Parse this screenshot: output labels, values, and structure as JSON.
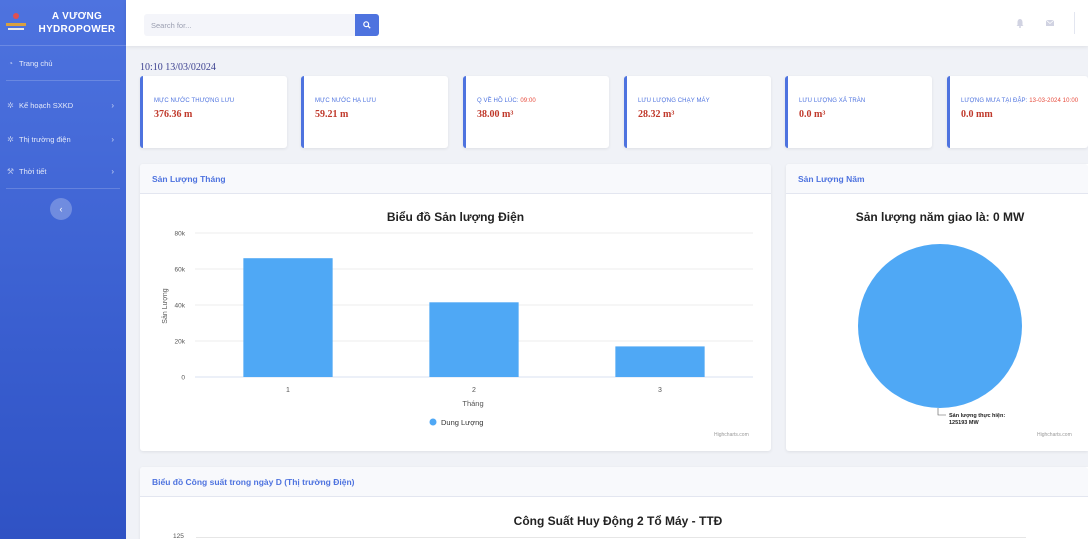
{
  "brand": {
    "line1": "A VƯƠNG",
    "line2": "HYDROPOWER"
  },
  "sidebar": {
    "items": [
      {
        "label": "Trang chủ",
        "icon": "dashboard-icon"
      },
      {
        "label": "Kế hoạch SXKD",
        "icon": "gear-icon"
      },
      {
        "label": "Thị trường điện",
        "icon": "gear-icon"
      },
      {
        "label": "Thời tiết",
        "icon": "wrench-icon"
      }
    ]
  },
  "search": {
    "placeholder": "Search for...",
    "value": ""
  },
  "timestamp": "10:10 13/03/02024",
  "cards": [
    {
      "label": "Mực nước thượng lưu",
      "time": "",
      "value": "376.36 m"
    },
    {
      "label": "Mực nước hạ lưu",
      "time": "",
      "value": "59.21 m"
    },
    {
      "label": "Q về hồ lúc:",
      "time": "09:00",
      "value": "38.00 m³"
    },
    {
      "label": "Lưu lượng chạy máy",
      "time": "",
      "value": "28.32 m³"
    },
    {
      "label": "Lưu lượng xả tràn",
      "time": "",
      "value": "0.0 m³"
    },
    {
      "label": "Lượng mưa tại đập:",
      "time": "13-03-2024 10:00",
      "value": "0.0 mm"
    }
  ],
  "panels": {
    "monthly": {
      "header": "Sản Lượng Tháng",
      "title": "Biểu đồ Sản lượng Điện",
      "credits": "Highcharts.com"
    },
    "yearly": {
      "header": "Sản Lượng Năm",
      "title": "Sản lượng năm giao là: 0 MW",
      "credits": "Highcharts.com"
    },
    "daily": {
      "header": "Biểu đồ Công suất trong ngày D (Thị trường Điện)",
      "title": "Công Suất Huy Động 2 Tổ Máy - TTĐ"
    }
  },
  "chart_data": [
    {
      "type": "bar",
      "title": "Biểu đồ Sản lượng Điện",
      "xlabel": "Tháng",
      "ylabel": "Sản Lượng",
      "categories": [
        "1",
        "2",
        "3"
      ],
      "y_ticks": [
        "0",
        "20k",
        "40k",
        "60k",
        "80k"
      ],
      "ylim": [
        0,
        80000
      ],
      "grid": true,
      "legend_position": "bottom",
      "series": [
        {
          "name": "Dung Lượng",
          "values": [
            66000,
            41500,
            17000
          ],
          "color": "#4fa8f5"
        }
      ]
    },
    {
      "type": "pie",
      "title": "Sản lượng năm giao là: 0 MW",
      "slices": [
        {
          "label": "Sản lượng thực hiện: 125193 MW",
          "value": 125193,
          "color": "#4fa8f5"
        }
      ]
    },
    {
      "type": "line",
      "title": "Công Suất Huy Động 2 Tổ Máy - TTĐ",
      "y_ticks": [
        "125"
      ]
    }
  ]
}
